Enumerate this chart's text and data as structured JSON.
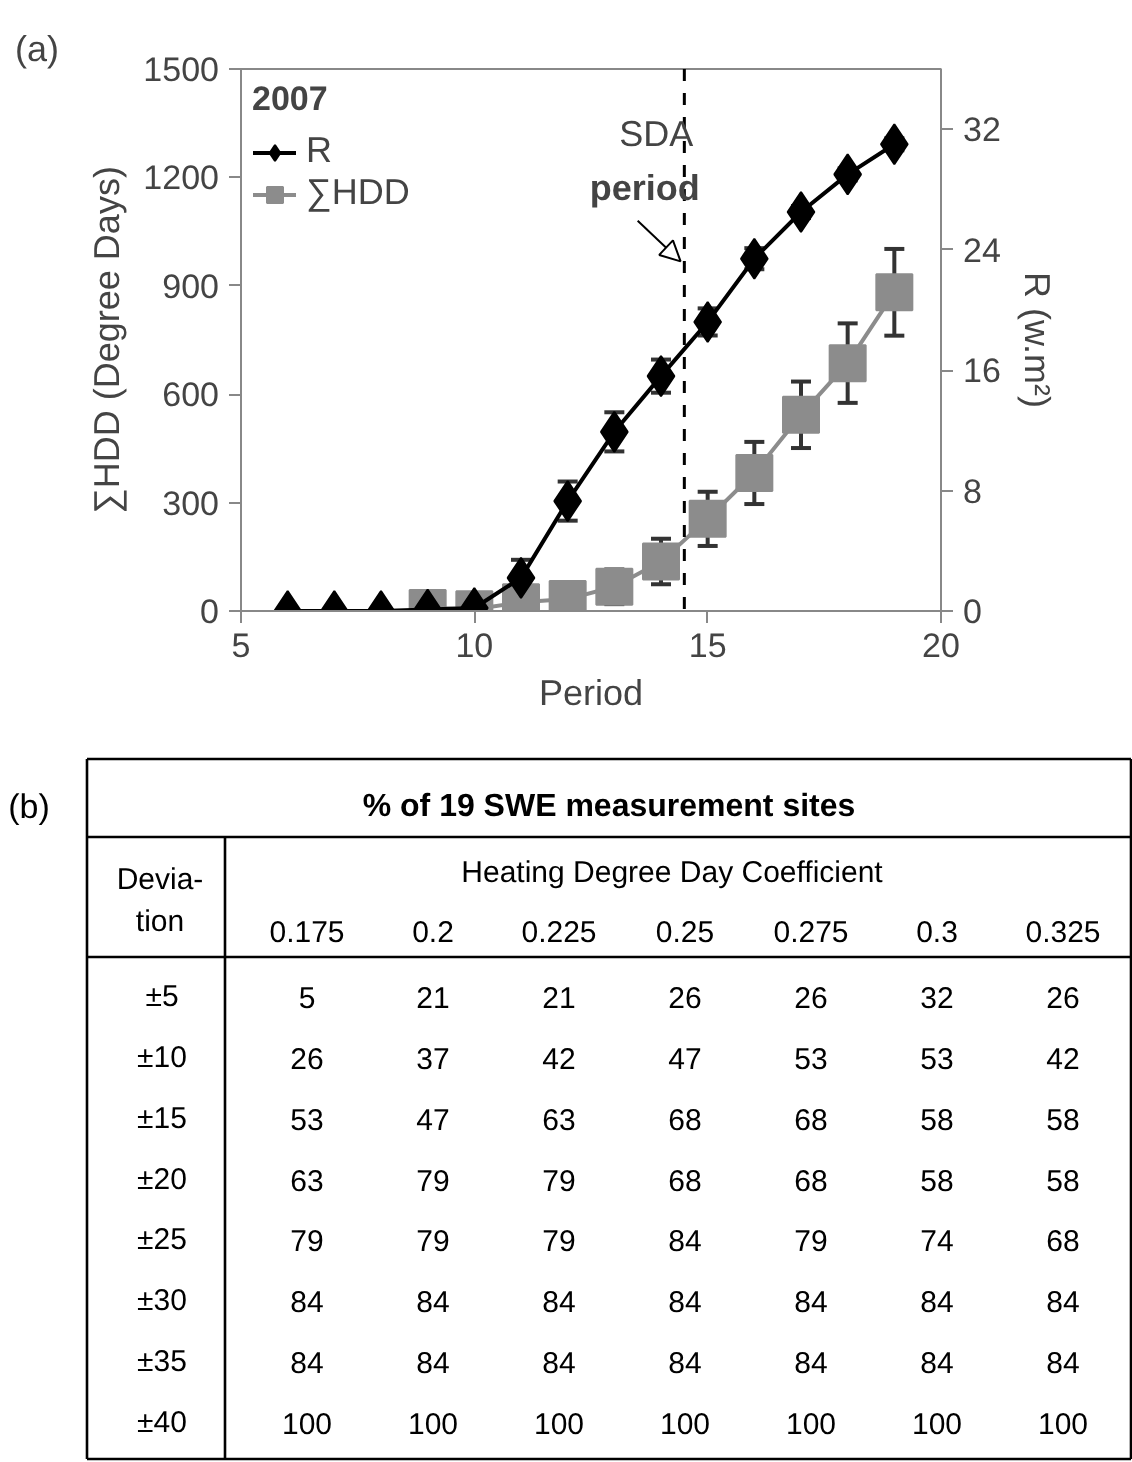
{
  "chart_data": [
    {
      "type": "line",
      "xlabel": "Period",
      "ylabel": "∑HDD (Degree Days)",
      "y2label": "R (w.m²)",
      "legend_title": "2007",
      "legend": "top left",
      "grid": false,
      "xlim": [
        5,
        20
      ],
      "xticks": [
        5,
        10,
        15,
        20
      ],
      "ylim": [
        0,
        1500
      ],
      "yticks": [
        0,
        300,
        600,
        900,
        1200,
        1500
      ],
      "y2lim": [
        0,
        36
      ],
      "y2ticks": [
        0,
        8,
        16,
        24,
        32
      ],
      "x": [
        6,
        7,
        8,
        9,
        10,
        11,
        12,
        13,
        14,
        15,
        16,
        17,
        18,
        19
      ],
      "series": [
        {
          "name": "R",
          "color": "#000000",
          "marker": "diamond",
          "axis": "y2",
          "values": [
            0,
            0,
            0,
            0.1,
            0.2,
            2.2,
            7.3,
            11.9,
            15.6,
            19.2,
            23.4,
            26.5,
            29.0,
            31.0
          ],
          "errors": [
            null,
            null,
            null,
            null,
            null,
            1.2,
            1.3,
            1.3,
            1.1,
            0.9,
            0.7,
            0.4,
            0.4,
            0.4
          ]
        },
        {
          "name": "∑HDD",
          "color": "#8c8c8c",
          "marker": "square",
          "x": [
            9,
            10,
            11,
            12,
            13,
            14,
            15,
            16,
            17,
            18,
            19
          ],
          "values": [
            8,
            5,
            24,
            33,
            67,
            137,
            255,
            382,
            543,
            686,
            882
          ],
          "errors": [
            null,
            null,
            24,
            24,
            48,
            63,
            75,
            86,
            92,
            110,
            120
          ]
        }
      ],
      "ref_lines": [
        {
          "axis": "x",
          "value": 14.5,
          "line_style": "dashed",
          "color": "#000000"
        }
      ],
      "annotations": [
        "(a)",
        "SDA",
        "period"
      ]
    },
    {
      "type": "heatmap",
      "title": "% of 19 SWE measurement sites",
      "xlabel": "Heating Degree Day Coefficient",
      "ylabel": "Devia-\ntion",
      "data_labels": true,
      "categories": [
        "0.175",
        "0.2",
        "0.225",
        "0.25",
        "0.275",
        "0.3",
        "0.325"
      ],
      "y_categories": [
        "±5",
        "±10",
        "±15",
        "±20",
        "±25",
        "±30",
        "±35",
        "±40"
      ],
      "cells": [
        [
          5,
          21,
          21,
          26,
          26,
          32,
          26
        ],
        [
          26,
          37,
          42,
          47,
          53,
          53,
          42
        ],
        [
          53,
          47,
          63,
          68,
          68,
          58,
          58
        ],
        [
          63,
          79,
          79,
          68,
          68,
          58,
          58
        ],
        [
          79,
          79,
          79,
          84,
          79,
          74,
          68
        ],
        [
          84,
          84,
          84,
          84,
          84,
          84,
          84
        ],
        [
          84,
          84,
          84,
          84,
          84,
          84,
          84
        ],
        [
          100,
          100,
          100,
          100,
          100,
          100,
          100
        ]
      ],
      "annotations": [
        "(b)"
      ]
    }
  ]
}
